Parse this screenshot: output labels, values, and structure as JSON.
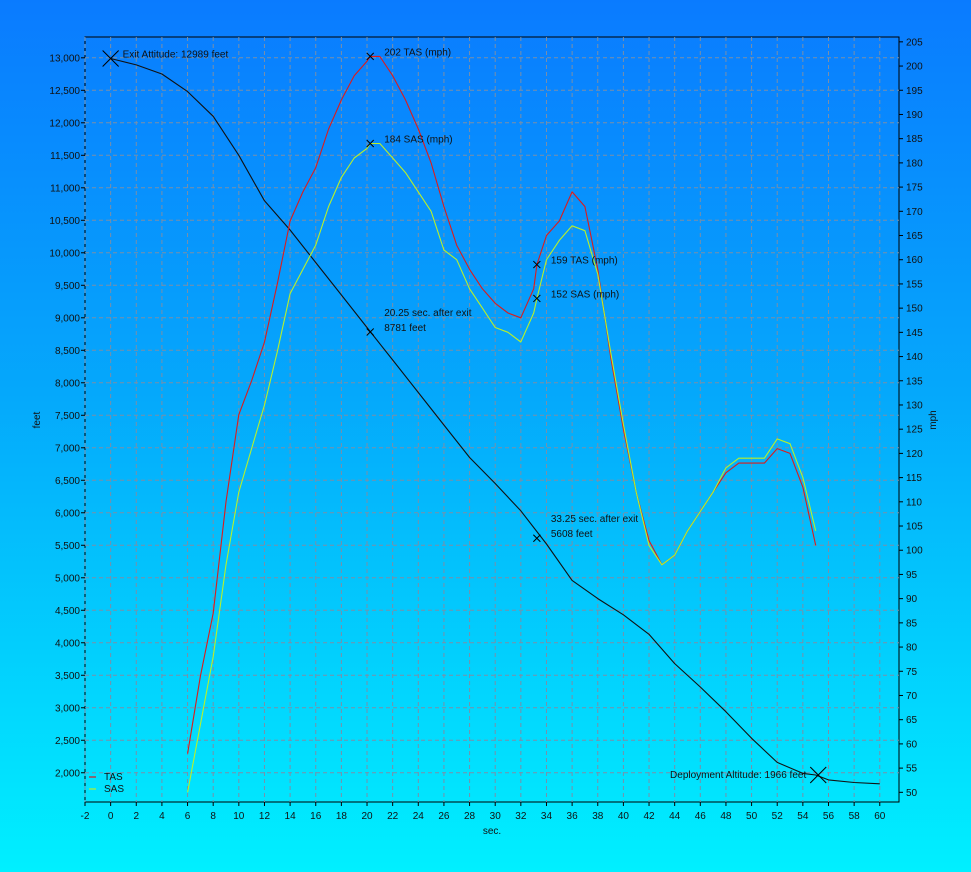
{
  "chart_data": {
    "type": "line",
    "title": "",
    "xlabel": "sec.",
    "ylabel_left": "feet",
    "ylabel_right": "mph",
    "xlim": [
      -2,
      61.5
    ],
    "ylim_left": [
      1550,
      13320
    ],
    "ylim_right": [
      48,
      206
    ],
    "x_ticks": [
      -2,
      0,
      2,
      4,
      6,
      8,
      10,
      12,
      14,
      16,
      18,
      20,
      22,
      24,
      26,
      28,
      30,
      32,
      34,
      36,
      38,
      40,
      42,
      44,
      46,
      48,
      50,
      52,
      54,
      56,
      58,
      60
    ],
    "y_left_ticks": [
      2000,
      2500,
      3000,
      3500,
      4000,
      4500,
      5000,
      5500,
      6000,
      6500,
      7000,
      7500,
      8000,
      8500,
      9000,
      9500,
      10000,
      10500,
      11000,
      11500,
      12000,
      12500,
      13000
    ],
    "y_left_tick_labels": [
      "2,000",
      "2,500",
      "3,000",
      "3,500",
      "4,000",
      "4,500",
      "5,000",
      "5,500",
      "6,000",
      "6,500",
      "7,000",
      "7,500",
      "8,000",
      "8,500",
      "9,000",
      "9,500",
      "10,000",
      "10,500",
      "11,000",
      "11,500",
      "12,000",
      "12,500",
      "13,000"
    ],
    "y_right_ticks": [
      50,
      55,
      60,
      65,
      70,
      75,
      80,
      85,
      90,
      95,
      100,
      105,
      110,
      115,
      120,
      125,
      130,
      135,
      140,
      145,
      150,
      155,
      160,
      165,
      170,
      175,
      180,
      185,
      190,
      195,
      200,
      205
    ],
    "grid": true,
    "legend_position": "bottom-left",
    "series": [
      {
        "name": "",
        "axis": "left",
        "color": "#111111",
        "x": [
          0,
          2,
          4,
          6,
          8,
          10,
          12,
          14,
          16,
          18,
          20,
          22,
          24,
          26,
          28,
          30,
          32,
          34,
          36,
          38,
          40,
          42,
          44,
          46,
          48,
          50,
          52,
          54,
          55,
          56,
          58,
          60
        ],
        "y": [
          12989,
          12890,
          12750,
          12480,
          12100,
          11500,
          10800,
          10350,
          9850,
          9350,
          8850,
          8350,
          7850,
          7350,
          6850,
          6450,
          6030,
          5520,
          4960,
          4680,
          4430,
          4130,
          3680,
          3320,
          2940,
          2530,
          2160,
          1990,
          1966,
          1890,
          1850,
          1830
        ]
      },
      {
        "name": "TAS",
        "axis": "right",
        "color": "#dd1b1b",
        "x": [
          6,
          7,
          8,
          9,
          10,
          11,
          12,
          13,
          14,
          15,
          16,
          17,
          18,
          19,
          20,
          20.25,
          21,
          22,
          23,
          24,
          25,
          26,
          27,
          28,
          29,
          30,
          31,
          32,
          33,
          33.25,
          34,
          35,
          36,
          37,
          38,
          39,
          40,
          41,
          42,
          43,
          44,
          45,
          46,
          47,
          48,
          49,
          50,
          51,
          52,
          53,
          54,
          55
        ],
        "y": [
          58,
          74,
          87,
          110,
          128,
          135,
          143,
          155,
          168,
          174,
          179,
          187,
          193,
          198,
          201,
          202,
          202,
          198,
          193,
          187,
          180,
          171,
          163,
          158,
          154,
          151,
          149,
          148,
          154,
          159,
          165,
          168,
          174,
          171,
          158,
          140,
          125,
          112,
          102,
          97,
          99,
          104,
          108,
          112,
          116,
          118,
          118,
          118,
          121,
          120,
          113,
          101
        ]
      },
      {
        "name": "SAS",
        "axis": "right",
        "color": "#b8f02a",
        "x": [
          6,
          7,
          8,
          9,
          10,
          11,
          12,
          13,
          14,
          15,
          16,
          17,
          18,
          19,
          20,
          20.25,
          21,
          22,
          23,
          24,
          25,
          26,
          27,
          28,
          29,
          30,
          31,
          32,
          33,
          33.25,
          34,
          35,
          36,
          37,
          38,
          39,
          40,
          41,
          42,
          43,
          44,
          45,
          46,
          47,
          48,
          49,
          50,
          51,
          52,
          53,
          54,
          55
        ],
        "y": [
          50,
          64,
          78,
          97,
          112,
          121,
          130,
          141,
          153,
          158,
          163,
          171,
          177,
          181,
          183,
          184,
          184,
          181,
          178,
          174,
          170,
          162,
          160,
          154,
          150,
          146,
          145,
          143,
          149,
          152,
          160,
          164,
          167,
          166,
          157,
          141,
          126,
          112,
          101,
          97,
          99,
          104,
          108,
          112,
          117,
          119,
          119,
          119,
          123,
          122,
          115,
          104
        ]
      }
    ],
    "annotations": [
      {
        "text": "Exit Attitude: 12989 feet",
        "x": 0,
        "y": 12989,
        "axis": "left",
        "marker": "large-x",
        "side": "right"
      },
      {
        "text": "202 TAS (mph)",
        "x": 20.25,
        "y": 202,
        "axis": "right",
        "marker": "small-x",
        "side": "right"
      },
      {
        "text": "184 SAS (mph)",
        "x": 20.25,
        "y": 184,
        "axis": "right",
        "marker": "small-x",
        "side": "right"
      },
      {
        "text": "20.25 sec. after exit",
        "text2": "8781 feet",
        "x": 20.25,
        "y": 8781,
        "axis": "left",
        "marker": "small-x",
        "side": "right"
      },
      {
        "text": "159 TAS (mph)",
        "x": 33.25,
        "y": 159,
        "axis": "right",
        "marker": "small-x",
        "side": "right"
      },
      {
        "text": "152 SAS (mph)",
        "x": 33.25,
        "y": 152,
        "axis": "right",
        "marker": "small-x",
        "side": "right"
      },
      {
        "text": "33.25 sec. after exit",
        "text2": "5608 feet",
        "x": 33.25,
        "y": 5608,
        "axis": "left",
        "marker": "small-x",
        "side": "right"
      },
      {
        "text": "Deployment Altitude: 1966 feet",
        "x": 55.2,
        "y": 1966,
        "axis": "left",
        "marker": "large-x",
        "side": "left"
      }
    ],
    "legend": [
      {
        "label": "TAS",
        "color": "#dd1b1b"
      },
      {
        "label": "SAS",
        "color": "#b8f02a"
      }
    ]
  }
}
